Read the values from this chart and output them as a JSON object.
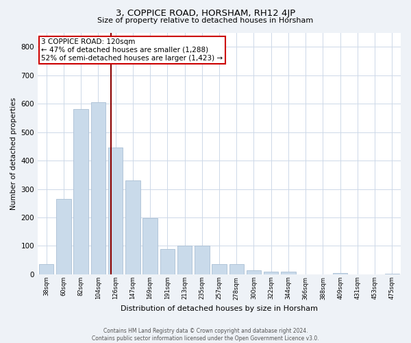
{
  "title": "3, COPPICE ROAD, HORSHAM, RH12 4JP",
  "subtitle": "Size of property relative to detached houses in Horsham",
  "xlabel": "Distribution of detached houses by size in Horsham",
  "ylabel": "Number of detached properties",
  "categories": [
    "38sqm",
    "60sqm",
    "82sqm",
    "104sqm",
    "126sqm",
    "147sqm",
    "169sqm",
    "191sqm",
    "213sqm",
    "235sqm",
    "257sqm",
    "278sqm",
    "300sqm",
    "322sqm",
    "344sqm",
    "366sqm",
    "388sqm",
    "409sqm",
    "431sqm",
    "453sqm",
    "475sqm"
  ],
  "values": [
    37,
    265,
    580,
    605,
    445,
    330,
    197,
    90,
    100,
    100,
    37,
    35,
    15,
    10,
    10,
    0,
    0,
    5,
    0,
    0,
    3
  ],
  "bar_color": "#c9daea",
  "bar_edgecolor": "#aabfd4",
  "vline_color": "#8b0000",
  "vline_x_index": 3.73,
  "annotation_box_color": "#ffffff",
  "annotation_border_color": "#cc0000",
  "annotation_line1": "3 COPPICE ROAD: 120sqm",
  "annotation_line2": "← 47% of detached houses are smaller (1,288)",
  "annotation_line3": "52% of semi-detached houses are larger (1,423) →",
  "ylim": [
    0,
    850
  ],
  "yticks": [
    0,
    100,
    200,
    300,
    400,
    500,
    600,
    700,
    800
  ],
  "footer_line1": "Contains HM Land Registry data © Crown copyright and database right 2024.",
  "footer_line2": "Contains public sector information licensed under the Open Government Licence v3.0.",
  "background_color": "#eef2f7",
  "plot_background": "#ffffff",
  "grid_color": "#cdd8e8",
  "title_fontsize": 9.5,
  "subtitle_fontsize": 8,
  "ylabel_fontsize": 7.5,
  "xlabel_fontsize": 8,
  "xtick_fontsize": 6,
  "ytick_fontsize": 7.5,
  "annot_fontsize": 7.5,
  "footer_fontsize": 5.5
}
